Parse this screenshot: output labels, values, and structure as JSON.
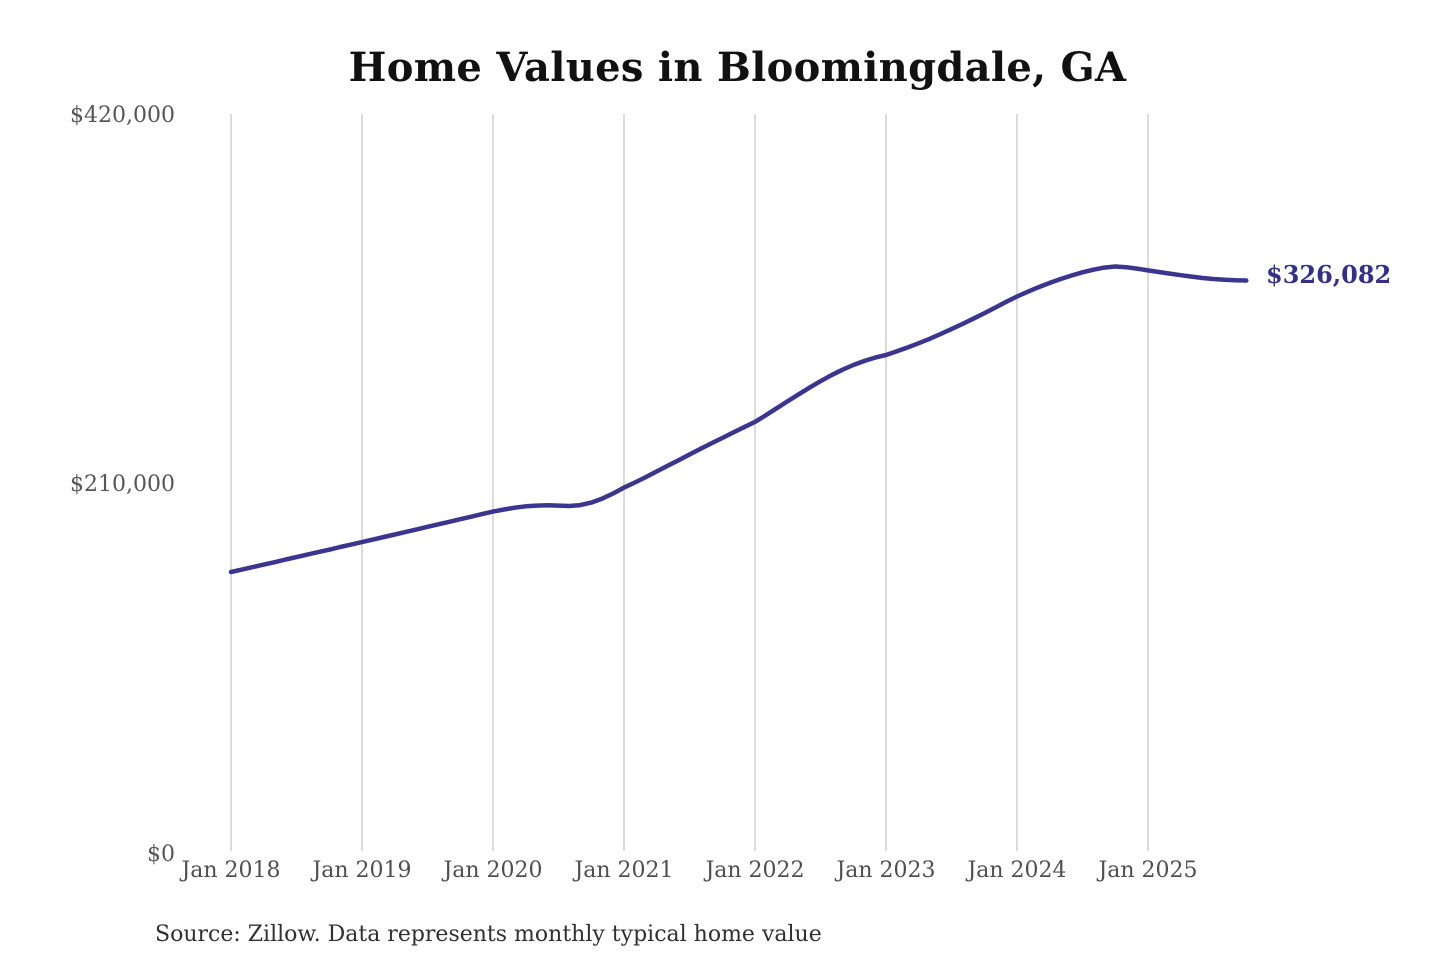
{
  "title": "Home Values in Bloomingdale, GA",
  "end_label": "$326,082",
  "source_note": "Source: Zillow. Data represents monthly typical home value",
  "colors": {
    "line": "#3b3590",
    "end_label": "#343089",
    "grid": "#c9c9c9",
    "title": "#111111",
    "axis_tick": "#565656",
    "source": "#303030"
  },
  "chart_data": {
    "type": "line",
    "title": "Home Values in Bloomingdale, GA",
    "xlabel": "",
    "ylabel": "",
    "ylim": [
      0,
      420000
    ],
    "y_tick_values": [
      0,
      210000,
      420000
    ],
    "y_tick_labels": [
      "$0",
      "$210,000",
      "$420,000"
    ],
    "x_tick_labels": [
      "Jan 2018",
      "Jan 2019",
      "Jan 2020",
      "Jan 2021",
      "Jan 2022",
      "Jan 2023",
      "Jan 2024",
      "Jan 2025"
    ],
    "frequency": "monthly",
    "x_start": "2018-01",
    "x_end": "2025-10",
    "grid": "vertical-only",
    "legend": "none",
    "end_value": 326082,
    "series": [
      {
        "name": "Typical home value",
        "values": [
          160600,
          162000,
          163400,
          164800,
          166200,
          167700,
          169100,
          170500,
          171900,
          173300,
          174800,
          176200,
          177600,
          179000,
          180500,
          181900,
          183400,
          184800,
          186300,
          187700,
          189100,
          190600,
          192000,
          193500,
          194900,
          196100,
          197100,
          197900,
          198300,
          198500,
          198300,
          198100,
          198600,
          200000,
          202300,
          205200,
          208500,
          211400,
          214500,
          217700,
          220900,
          224100,
          227300,
          230500,
          233600,
          236700,
          239800,
          242800,
          245800,
          249600,
          253600,
          257600,
          261500,
          265300,
          268900,
          272300,
          275400,
          278100,
          280400,
          282300,
          283800,
          285900,
          288100,
          290500,
          293000,
          295700,
          298500,
          301400,
          304400,
          307500,
          310700,
          313900,
          317000,
          319700,
          322300,
          324700,
          326900,
          328900,
          330700,
          332200,
          333400,
          334000,
          333600,
          332800,
          331800,
          330900,
          330000,
          329100,
          328300,
          327500,
          326900,
          326500,
          326200,
          326082
        ]
      }
    ]
  }
}
